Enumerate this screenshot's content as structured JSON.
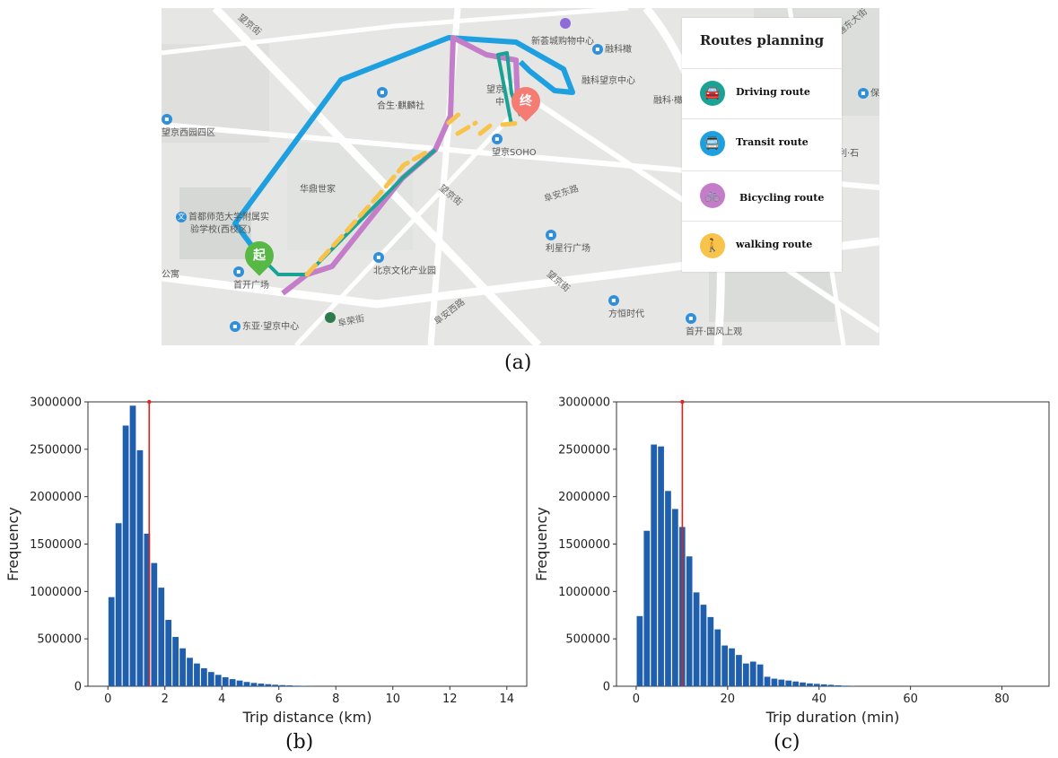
{
  "colors": {
    "driving": "#1aa394",
    "transit": "#1ea0e0",
    "bicycling": "#c47ec9",
    "walking": "#f7c34a",
    "start_pin": "#57b845",
    "end_pin": "#f47c73",
    "bar": "#1f5fae",
    "marker": "#e0211c"
  },
  "map": {
    "start_label": "起",
    "end_label": "终",
    "pois": [
      {
        "text": "新荟城购物中心"
      },
      {
        "text": "融科橄"
      },
      {
        "text": "融科望京中心"
      },
      {
        "text": "融科·橄"
      },
      {
        "text": "合生·麒麟社"
      },
      {
        "text": "望京"
      },
      {
        "text": "中"
      },
      {
        "text": "望京SOHO"
      },
      {
        "text": "望京西园四区"
      },
      {
        "text": "华鼎世家"
      },
      {
        "text": "首都师范大学附属实"
      },
      {
        "text": "验学校(西校区)"
      },
      {
        "text": "首开广场"
      },
      {
        "text": "北京文化产业园"
      },
      {
        "text": "利星行广场"
      },
      {
        "text": "方恒时代"
      },
      {
        "text": "东亚·望京中心"
      },
      {
        "text": "首开·国风上观"
      },
      {
        "text": "保利·石"
      },
      {
        "text": "保"
      },
      {
        "text": "公寓"
      }
    ],
    "roads": [
      {
        "text": "望京街"
      },
      {
        "text": "阜安东路"
      },
      {
        "text": "望京街"
      },
      {
        "text": "阜安西路"
      },
      {
        "text": "望京街"
      },
      {
        "text": "阜荣街"
      },
      {
        "text": "阜通东大街"
      }
    ]
  },
  "legend": {
    "title": "Routes planning",
    "items": [
      {
        "label": "Driving route",
        "icon": "car-icon",
        "glyph": "🚘"
      },
      {
        "label": "Transit route",
        "icon": "bus-icon",
        "glyph": "🚍"
      },
      {
        "label": "Bicycling route",
        "icon": "bicycle-icon",
        "glyph": "🚲"
      },
      {
        "label": "walking route",
        "icon": "walking-person-icon",
        "glyph": "🚶"
      }
    ]
  },
  "captions": {
    "a": "(a)",
    "b": "(b)",
    "c": "(c)"
  },
  "chart_data": [
    {
      "type": "bar",
      "xlabel": "Trip distance (km)",
      "ylabel": "Frequency",
      "xlim": [
        -0.7,
        14.7
      ],
      "ylim": [
        0,
        3000000
      ],
      "xticks": [
        0,
        2,
        4,
        6,
        8,
        10,
        12,
        14
      ],
      "yticks": [
        0,
        500000,
        1000000,
        1500000,
        2000000,
        2500000,
        3000000
      ],
      "bin_width": 0.25,
      "x": [
        0.125,
        0.375,
        0.625,
        0.875,
        1.125,
        1.375,
        1.625,
        1.875,
        2.125,
        2.375,
        2.625,
        2.875,
        3.125,
        3.375,
        3.625,
        3.875,
        4.125,
        4.375,
        4.625,
        4.875,
        5.125,
        5.375,
        5.625,
        5.875,
        6.125,
        6.375,
        6.625,
        6.875,
        7.125
      ],
      "values": [
        940000,
        1720000,
        2750000,
        2960000,
        2490000,
        1610000,
        1300000,
        1040000,
        700000,
        520000,
        400000,
        300000,
        240000,
        190000,
        150000,
        120000,
        95000,
        75000,
        60000,
        45000,
        35000,
        28000,
        22000,
        16000,
        12000,
        9000,
        6000,
        4000,
        2000
      ],
      "marker_x": 1.45
    },
    {
      "type": "bar",
      "xlabel": "Trip duration (min)",
      "ylabel": "Frequency",
      "xlim": [
        -4.3,
        90.3
      ],
      "ylim": [
        0,
        3000000
      ],
      "xticks": [
        0,
        20,
        40,
        60,
        80
      ],
      "yticks": [
        0,
        500000,
        1000000,
        1500000,
        2000000,
        2500000,
        3000000
      ],
      "bin_width": 1.55,
      "x": [
        0.78,
        2.33,
        3.88,
        5.43,
        6.98,
        8.53,
        10.08,
        11.63,
        13.18,
        14.73,
        16.28,
        17.83,
        19.38,
        20.93,
        22.48,
        24.03,
        25.58,
        27.13,
        28.68,
        30.23,
        31.78,
        33.33,
        34.88,
        36.43,
        37.98,
        39.53,
        41.08,
        42.63,
        44.18,
        45.73,
        47.28
      ],
      "values": [
        740000,
        1640000,
        2550000,
        2530000,
        2060000,
        1870000,
        1680000,
        1370000,
        990000,
        860000,
        730000,
        600000,
        430000,
        400000,
        330000,
        240000,
        260000,
        230000,
        100000,
        80000,
        70000,
        60000,
        50000,
        40000,
        30000,
        25000,
        20000,
        15000,
        10000,
        6000,
        3000
      ],
      "marker_x": 10.1
    }
  ]
}
